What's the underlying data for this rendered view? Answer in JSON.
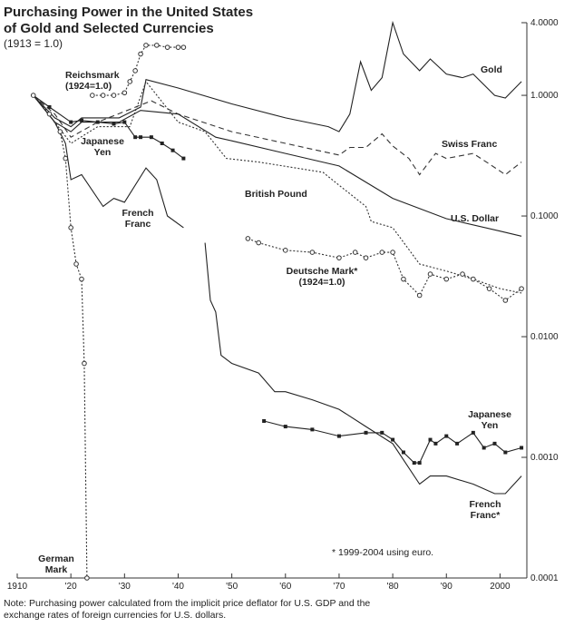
{
  "chart_data": {
    "type": "line",
    "title": [
      "Purchasing Power in the United States",
      "of Gold and Selected Currencies"
    ],
    "subtitle": "(1913 = 1.0)",
    "log_scale": true,
    "xlim": [
      1910,
      2005
    ],
    "xticks": [
      1910,
      {
        "value": 1920,
        "label": "'20"
      },
      {
        "value": 1930,
        "label": "'30"
      },
      {
        "value": 1940,
        "label": "'40"
      },
      {
        "value": 1950,
        "label": "'50"
      },
      {
        "value": 1960,
        "label": "'60"
      },
      {
        "value": 1970,
        "label": "'70"
      },
      {
        "value": 1980,
        "label": "'80"
      },
      {
        "value": 1990,
        "label": "'90"
      },
      2000
    ],
    "ylim": [
      0.0001,
      4
    ],
    "yticks": [
      {
        "value": 4,
        "label": "4.0000"
      },
      {
        "value": 1,
        "label": "1.0000"
      },
      {
        "value": 0.1,
        "label": "0.1000"
      },
      {
        "value": 0.01,
        "label": "0.0100"
      },
      {
        "value": 0.001,
        "label": "0.0010"
      },
      {
        "value": 0.0001,
        "label": "0.0001"
      }
    ],
    "series": [
      {
        "label": [
          "Gold"
        ],
        "color": "#222",
        "dash": "solid",
        "x": [
          1913,
          1917,
          1920,
          1922,
          1929,
          1933,
          1934,
          1940,
          1950,
          1960,
          1968,
          1970,
          1972,
          1974,
          1976,
          1978,
          1980,
          1982,
          1985,
          1987,
          1990,
          1993,
          1995,
          1999,
          2001,
          2004
        ],
        "values": [
          1.0,
          0.65,
          0.55,
          0.65,
          0.65,
          0.8,
          1.35,
          1.15,
          0.85,
          0.65,
          0.55,
          0.5,
          0.7,
          1.9,
          1.1,
          1.4,
          4.0,
          2.2,
          1.6,
          2.0,
          1.5,
          1.4,
          1.5,
          1.0,
          0.95,
          1.3
        ]
      },
      {
        "label": [
          "Swiss Franc"
        ],
        "color": "#333",
        "dash": "dashed",
        "x": [
          1913,
          1917,
          1920,
          1925,
          1935,
          1940,
          1950,
          1960,
          1970,
          1972,
          1975,
          1978,
          1980,
          1983,
          1985,
          1988,
          1990,
          1995,
          1998,
          2001,
          2004
        ],
        "values": [
          1.0,
          0.7,
          0.45,
          0.6,
          0.9,
          0.7,
          0.5,
          0.4,
          0.32,
          0.37,
          0.37,
          0.48,
          0.38,
          0.3,
          0.22,
          0.33,
          0.3,
          0.33,
          0.27,
          0.22,
          0.28
        ]
      },
      {
        "label": [
          "British Pound"
        ],
        "color": "#333",
        "dash": "dotted",
        "x": [
          1913,
          1917,
          1920,
          1925,
          1931,
          1934,
          1940,
          1945,
          1949,
          1955,
          1967,
          1970,
          1975,
          1976,
          1980,
          1985,
          1990,
          1995,
          2000,
          2004
        ],
        "values": [
          1.0,
          0.6,
          0.4,
          0.55,
          0.55,
          1.3,
          0.6,
          0.5,
          0.3,
          0.28,
          0.23,
          0.18,
          0.12,
          0.09,
          0.08,
          0.04,
          0.035,
          0.03,
          0.025,
          0.023
        ]
      },
      {
        "label": [
          "U.S. Dollar"
        ],
        "color": "#222",
        "dash": "solid",
        "x": [
          1913,
          1917,
          1920,
          1922,
          1929,
          1933,
          1940,
          1947,
          1950,
          1960,
          1970,
          1980,
          1990,
          2000,
          2004
        ],
        "values": [
          1.0,
          0.6,
          0.5,
          0.6,
          0.6,
          0.75,
          0.7,
          0.45,
          0.42,
          0.33,
          0.26,
          0.14,
          0.095,
          0.075,
          0.068
        ]
      },
      {
        "label": [
          "Reichsmark",
          "(1924=1.0)"
        ],
        "color": "#333",
        "dash": "dotted",
        "marker": "circle",
        "x": [
          1924,
          1926,
          1928,
          1930,
          1931,
          1932,
          1933,
          1934,
          1936,
          1938,
          1940,
          1941
        ],
        "values": [
          1.0,
          1.0,
          1.0,
          1.05,
          1.3,
          1.6,
          2.2,
          2.6,
          2.6,
          2.5,
          2.5,
          2.5
        ]
      },
      {
        "label": [
          "Japanese",
          "Yen"
        ],
        "color": "#222",
        "dash": "solid",
        "marker": "square",
        "x": [
          1913,
          1916,
          1920,
          1922,
          1925,
          1928,
          1930,
          1932,
          1933,
          1935,
          1937,
          1939,
          1941
        ],
        "values": [
          1.0,
          0.8,
          0.6,
          0.62,
          0.6,
          0.58,
          0.6,
          0.45,
          0.45,
          0.45,
          0.4,
          0.35,
          0.3
        ]
      },
      {
        "label": [
          "French",
          "Franc"
        ],
        "color": "#222",
        "dash": "solid",
        "x": [
          1913,
          1917,
          1919,
          1920,
          1922,
          1926,
          1928,
          1930,
          1934,
          1936,
          1938,
          1941
        ],
        "values": [
          1.0,
          0.6,
          0.4,
          0.2,
          0.22,
          0.12,
          0.14,
          0.13,
          0.25,
          0.2,
          0.1,
          0.08
        ]
      },
      {
        "label": [
          "German",
          "Mark"
        ],
        "color": "#333",
        "dash": "dotted",
        "marker": "circle",
        "x": [
          1913,
          1916,
          1918,
          1919,
          1920,
          1921,
          1922,
          1922.5,
          1923
        ],
        "values": [
          1.0,
          0.7,
          0.5,
          0.3,
          0.08,
          0.04,
          0.03,
          0.006,
          0.0001
        ]
      },
      {
        "label": [
          "Deutsche Mark*",
          "(1924=1.0)"
        ],
        "color": "#333",
        "dash": "dotted",
        "marker": "circle",
        "x": [
          1953,
          1955,
          1960,
          1965,
          1970,
          1973,
          1975,
          1978,
          1980,
          1982,
          1985,
          1987,
          1990,
          1993,
          1995,
          1998,
          2001,
          2004
        ],
        "values": [
          0.065,
          0.06,
          0.052,
          0.05,
          0.045,
          0.05,
          0.045,
          0.05,
          0.05,
          0.03,
          0.022,
          0.033,
          0.03,
          0.033,
          0.03,
          0.025,
          0.02,
          0.025
        ]
      },
      {
        "label": [
          "Japanese",
          "Yen"
        ],
        "color": "#222",
        "dash": "solid",
        "marker": "square",
        "x": [
          1956,
          1960,
          1965,
          1970,
          1975,
          1978,
          1980,
          1982,
          1984,
          1985,
          1987,
          1988,
          1990,
          1992,
          1995,
          1997,
          1999,
          2001,
          2004
        ],
        "values": [
          0.002,
          0.0018,
          0.0017,
          0.0015,
          0.0016,
          0.0016,
          0.0014,
          0.0011,
          0.0009,
          0.0009,
          0.0014,
          0.0013,
          0.0015,
          0.0013,
          0.0016,
          0.0012,
          0.0013,
          0.0011,
          0.0012
        ]
      },
      {
        "label": [
          "French",
          "Franc*"
        ],
        "color": "#222",
        "dash": "solid",
        "x": [
          1945,
          1946,
          1947,
          1948,
          1950,
          1955,
          1958,
          1960,
          1965,
          1970,
          1975,
          1980,
          1985,
          1987,
          1990,
          1995,
          1999,
          2001,
          2004
        ],
        "values": [
          0.06,
          0.02,
          0.016,
          0.007,
          0.006,
          0.005,
          0.0035,
          0.0035,
          0.003,
          0.0025,
          0.0018,
          0.0013,
          0.0006,
          0.0007,
          0.0007,
          0.0006,
          0.0005,
          0.0005,
          0.0007
        ]
      }
    ],
    "annotation": "* 1999-2004 using euro.",
    "note": [
      "Note: Purchasing power calculated from the implicit price deflator for U.S. GDP and the",
      "exchange rates of foreign currencies for U.S. dollars."
    ]
  }
}
